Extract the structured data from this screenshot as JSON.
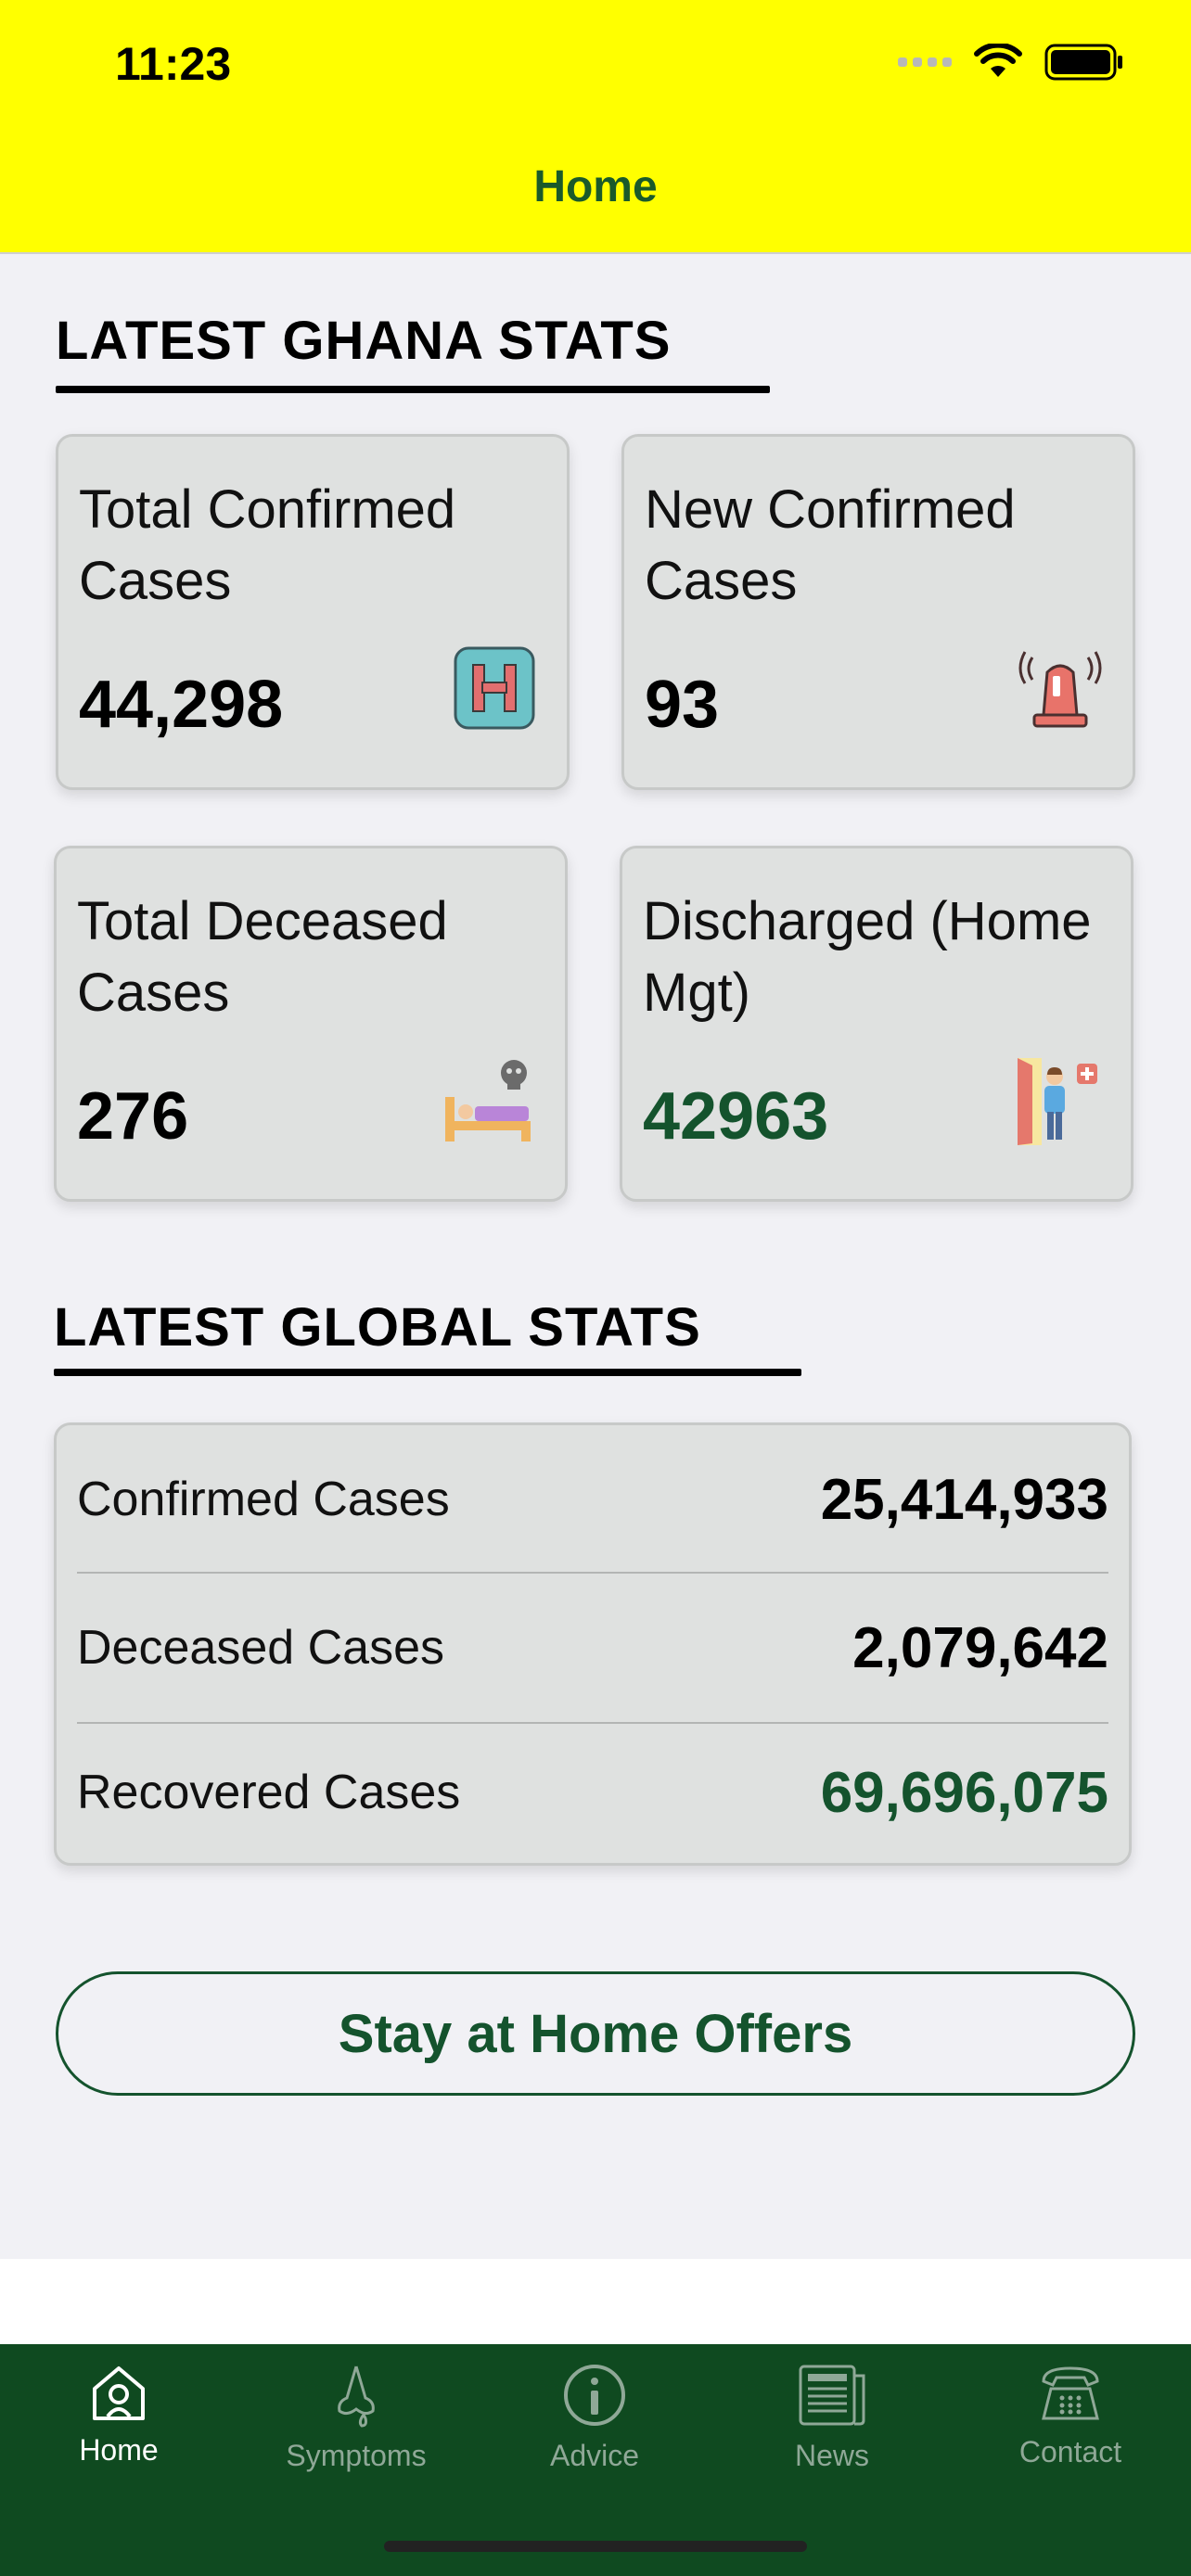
{
  "status_bar": {
    "time": "11:23"
  },
  "nav": {
    "title": "Home"
  },
  "ghana": {
    "title": "LATEST GHANA STATS",
    "cards": [
      {
        "label": "Total Confirmed Cases",
        "value": "44,298",
        "icon": "hospital-icon"
      },
      {
        "label": "New Confirmed Cases",
        "value": "93",
        "icon": "siren-icon"
      },
      {
        "label": "Total Deceased Cases",
        "value": "276",
        "icon": "bed-skull-icon"
      },
      {
        "label": "Discharged (Home Mgt)",
        "value": "42963",
        "icon": "discharged-person-icon"
      }
    ]
  },
  "global": {
    "title": "LATEST GLOBAL STATS",
    "rows": [
      {
        "label": "Confirmed Cases",
        "value": "25,414,933"
      },
      {
        "label": "Deceased Cases",
        "value": "2,079,642"
      },
      {
        "label": "Recovered Cases",
        "value": "69,696,075"
      }
    ]
  },
  "offers_button": "Stay at Home Offers",
  "tabs": [
    {
      "label": "Home",
      "icon": "home-icon",
      "active": true
    },
    {
      "label": "Symptoms",
      "icon": "symptoms-icon",
      "active": false
    },
    {
      "label": "Advice",
      "icon": "info-icon",
      "active": false
    },
    {
      "label": "News",
      "icon": "newspaper-icon",
      "active": false
    },
    {
      "label": "Contact",
      "icon": "phone-icon",
      "active": false
    }
  ],
  "colors": {
    "header": "#ffff00",
    "brand_green": "#14532d",
    "tabbar": "#0f4a20"
  }
}
